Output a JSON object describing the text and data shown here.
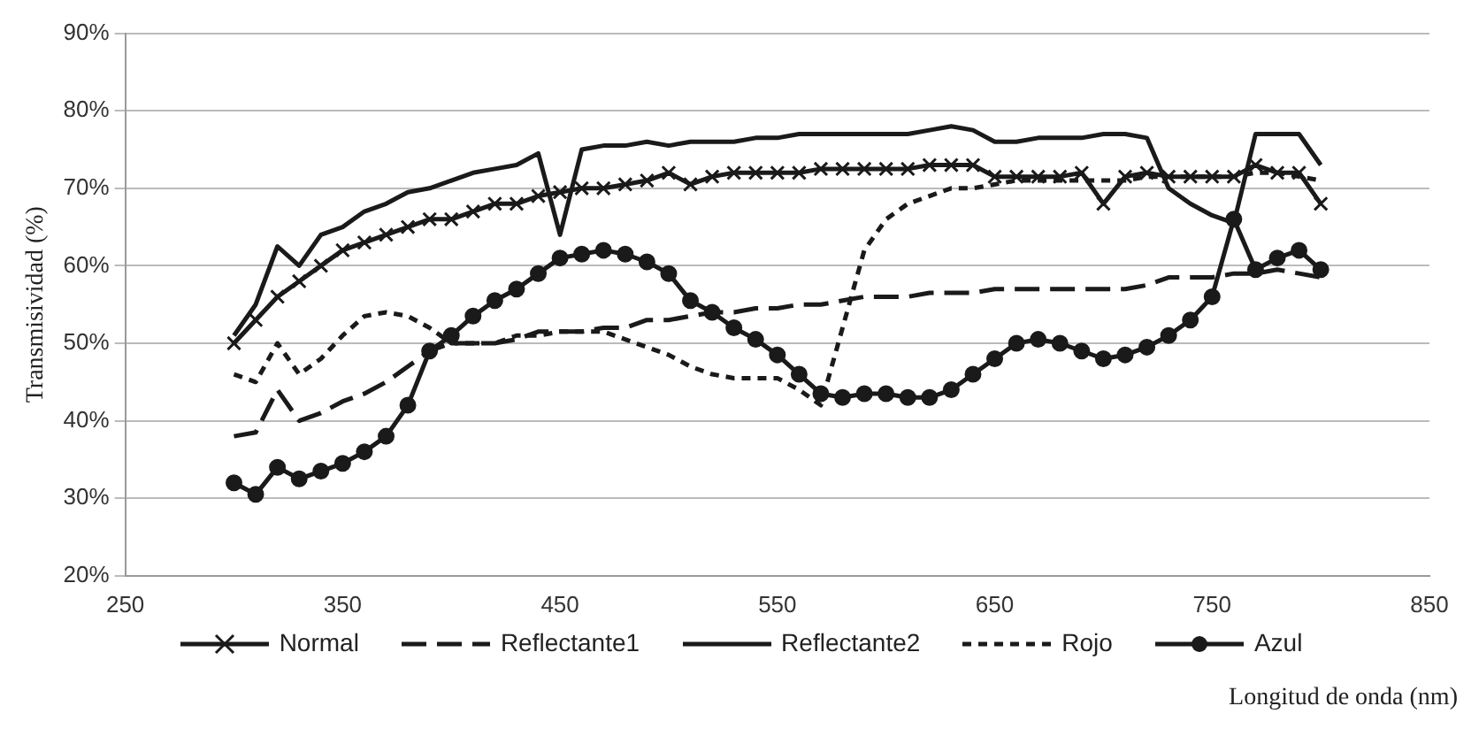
{
  "chart_data": {
    "type": "line",
    "xlabel": "Longitud de onda (nm)",
    "ylabel": "Transmisividad (%)",
    "x": [
      300,
      310,
      320,
      330,
      340,
      350,
      360,
      370,
      380,
      390,
      400,
      410,
      420,
      430,
      440,
      450,
      460,
      470,
      480,
      490,
      500,
      510,
      520,
      530,
      540,
      550,
      560,
      570,
      580,
      590,
      600,
      610,
      620,
      630,
      640,
      650,
      660,
      670,
      680,
      690,
      700,
      710,
      720,
      730,
      740,
      750,
      760,
      770,
      780,
      790,
      800
    ],
    "xlim": [
      250,
      850
    ],
    "xticks": [
      250,
      350,
      450,
      550,
      650,
      750,
      850
    ],
    "ylim": [
      20,
      90
    ],
    "yticks": [
      {
        "value": 20,
        "label": "20%"
      },
      {
        "value": 30,
        "label": "30%"
      },
      {
        "value": 40,
        "label": "40%"
      },
      {
        "value": 50,
        "label": "50%"
      },
      {
        "value": 60,
        "label": "60%"
      },
      {
        "value": 70,
        "label": "70%"
      },
      {
        "value": 80,
        "label": "80%"
      },
      {
        "value": 90,
        "label": "90%"
      }
    ],
    "grid": "y",
    "legend": "bottom",
    "series": [
      {
        "name": "Normal",
        "color": "#1a1a1a",
        "marker": "cross",
        "line_style": "solid",
        "values": [
          50,
          53,
          56,
          58,
          60,
          62,
          63,
          64,
          65,
          66,
          66,
          67,
          68,
          68,
          69,
          69.5,
          70,
          70,
          70.5,
          71,
          72,
          70.5,
          71.5,
          72,
          72,
          72,
          72,
          72.5,
          72.5,
          72.5,
          72.5,
          72.5,
          73,
          73,
          73,
          71.5,
          71.5,
          71.5,
          71.5,
          72,
          68,
          71.5,
          72,
          71.5,
          71.5,
          71.5,
          71.5,
          73,
          72,
          72,
          68
        ]
      },
      {
        "name": "Reflectante1",
        "color": "#1a1a1a",
        "marker": "none",
        "line_style": "dashed",
        "values": [
          38,
          38.5,
          44,
          40,
          41,
          42.5,
          43.5,
          45,
          47,
          49,
          50,
          50,
          50,
          50.5,
          51.5,
          51.5,
          51.5,
          52,
          52,
          53,
          53,
          53.5,
          54,
          54,
          54.5,
          54.5,
          55,
          55,
          55.5,
          56,
          56,
          56,
          56.5,
          56.5,
          56.5,
          57,
          57,
          57,
          57,
          57,
          57,
          57,
          57.5,
          58.5,
          58.5,
          58.5,
          59,
          59,
          59.5,
          59,
          58.5
        ]
      },
      {
        "name": "Reflectante2",
        "color": "#1a1a1a",
        "marker": "none",
        "line_style": "solid",
        "values": [
          51,
          55,
          62.5,
          60,
          64,
          65,
          67,
          68,
          69.5,
          70,
          71,
          72,
          72.5,
          73,
          74.5,
          64,
          75,
          75.5,
          75.5,
          76,
          75.5,
          76,
          76,
          76,
          76.5,
          76.5,
          77,
          77,
          77,
          77,
          77,
          77,
          77.5,
          78,
          77.5,
          76,
          76,
          76.5,
          76.5,
          76.5,
          77,
          77,
          76.5,
          70,
          68,
          66.5,
          65.5,
          77,
          77,
          77,
          73
        ]
      },
      {
        "name": "Rojo",
        "color": "#1a1a1a",
        "marker": "none",
        "line_style": "dotted",
        "values": [
          46,
          45,
          50,
          46,
          48,
          51,
          53.5,
          54,
          53.5,
          52,
          50,
          50,
          50,
          51,
          51,
          51.5,
          51.5,
          51.5,
          50.5,
          49.5,
          48.5,
          47,
          46,
          45.5,
          45.5,
          45.5,
          44,
          42,
          52,
          62,
          66,
          68,
          69,
          70,
          70,
          70.5,
          71,
          71,
          71,
          71,
          71,
          71,
          71.5,
          71.5,
          71.5,
          71.5,
          71.5,
          72,
          72,
          71.5,
          71
        ]
      },
      {
        "name": "Azul",
        "color": "#1a1a1a",
        "marker": "circle",
        "line_style": "solid",
        "values": [
          32,
          30.5,
          34,
          32.5,
          33.5,
          34.5,
          36,
          38,
          42,
          49,
          51,
          53.5,
          55.5,
          57,
          59,
          61,
          61.5,
          62,
          61.5,
          60.5,
          59,
          55.5,
          54,
          52,
          50.5,
          48.5,
          46,
          43.5,
          43,
          43.5,
          43.5,
          43,
          43,
          44,
          46,
          48,
          50,
          50.5,
          50,
          49,
          48,
          48.5,
          49.5,
          51,
          53,
          56,
          66,
          59.5,
          61,
          62,
          59.5
        ]
      }
    ]
  }
}
